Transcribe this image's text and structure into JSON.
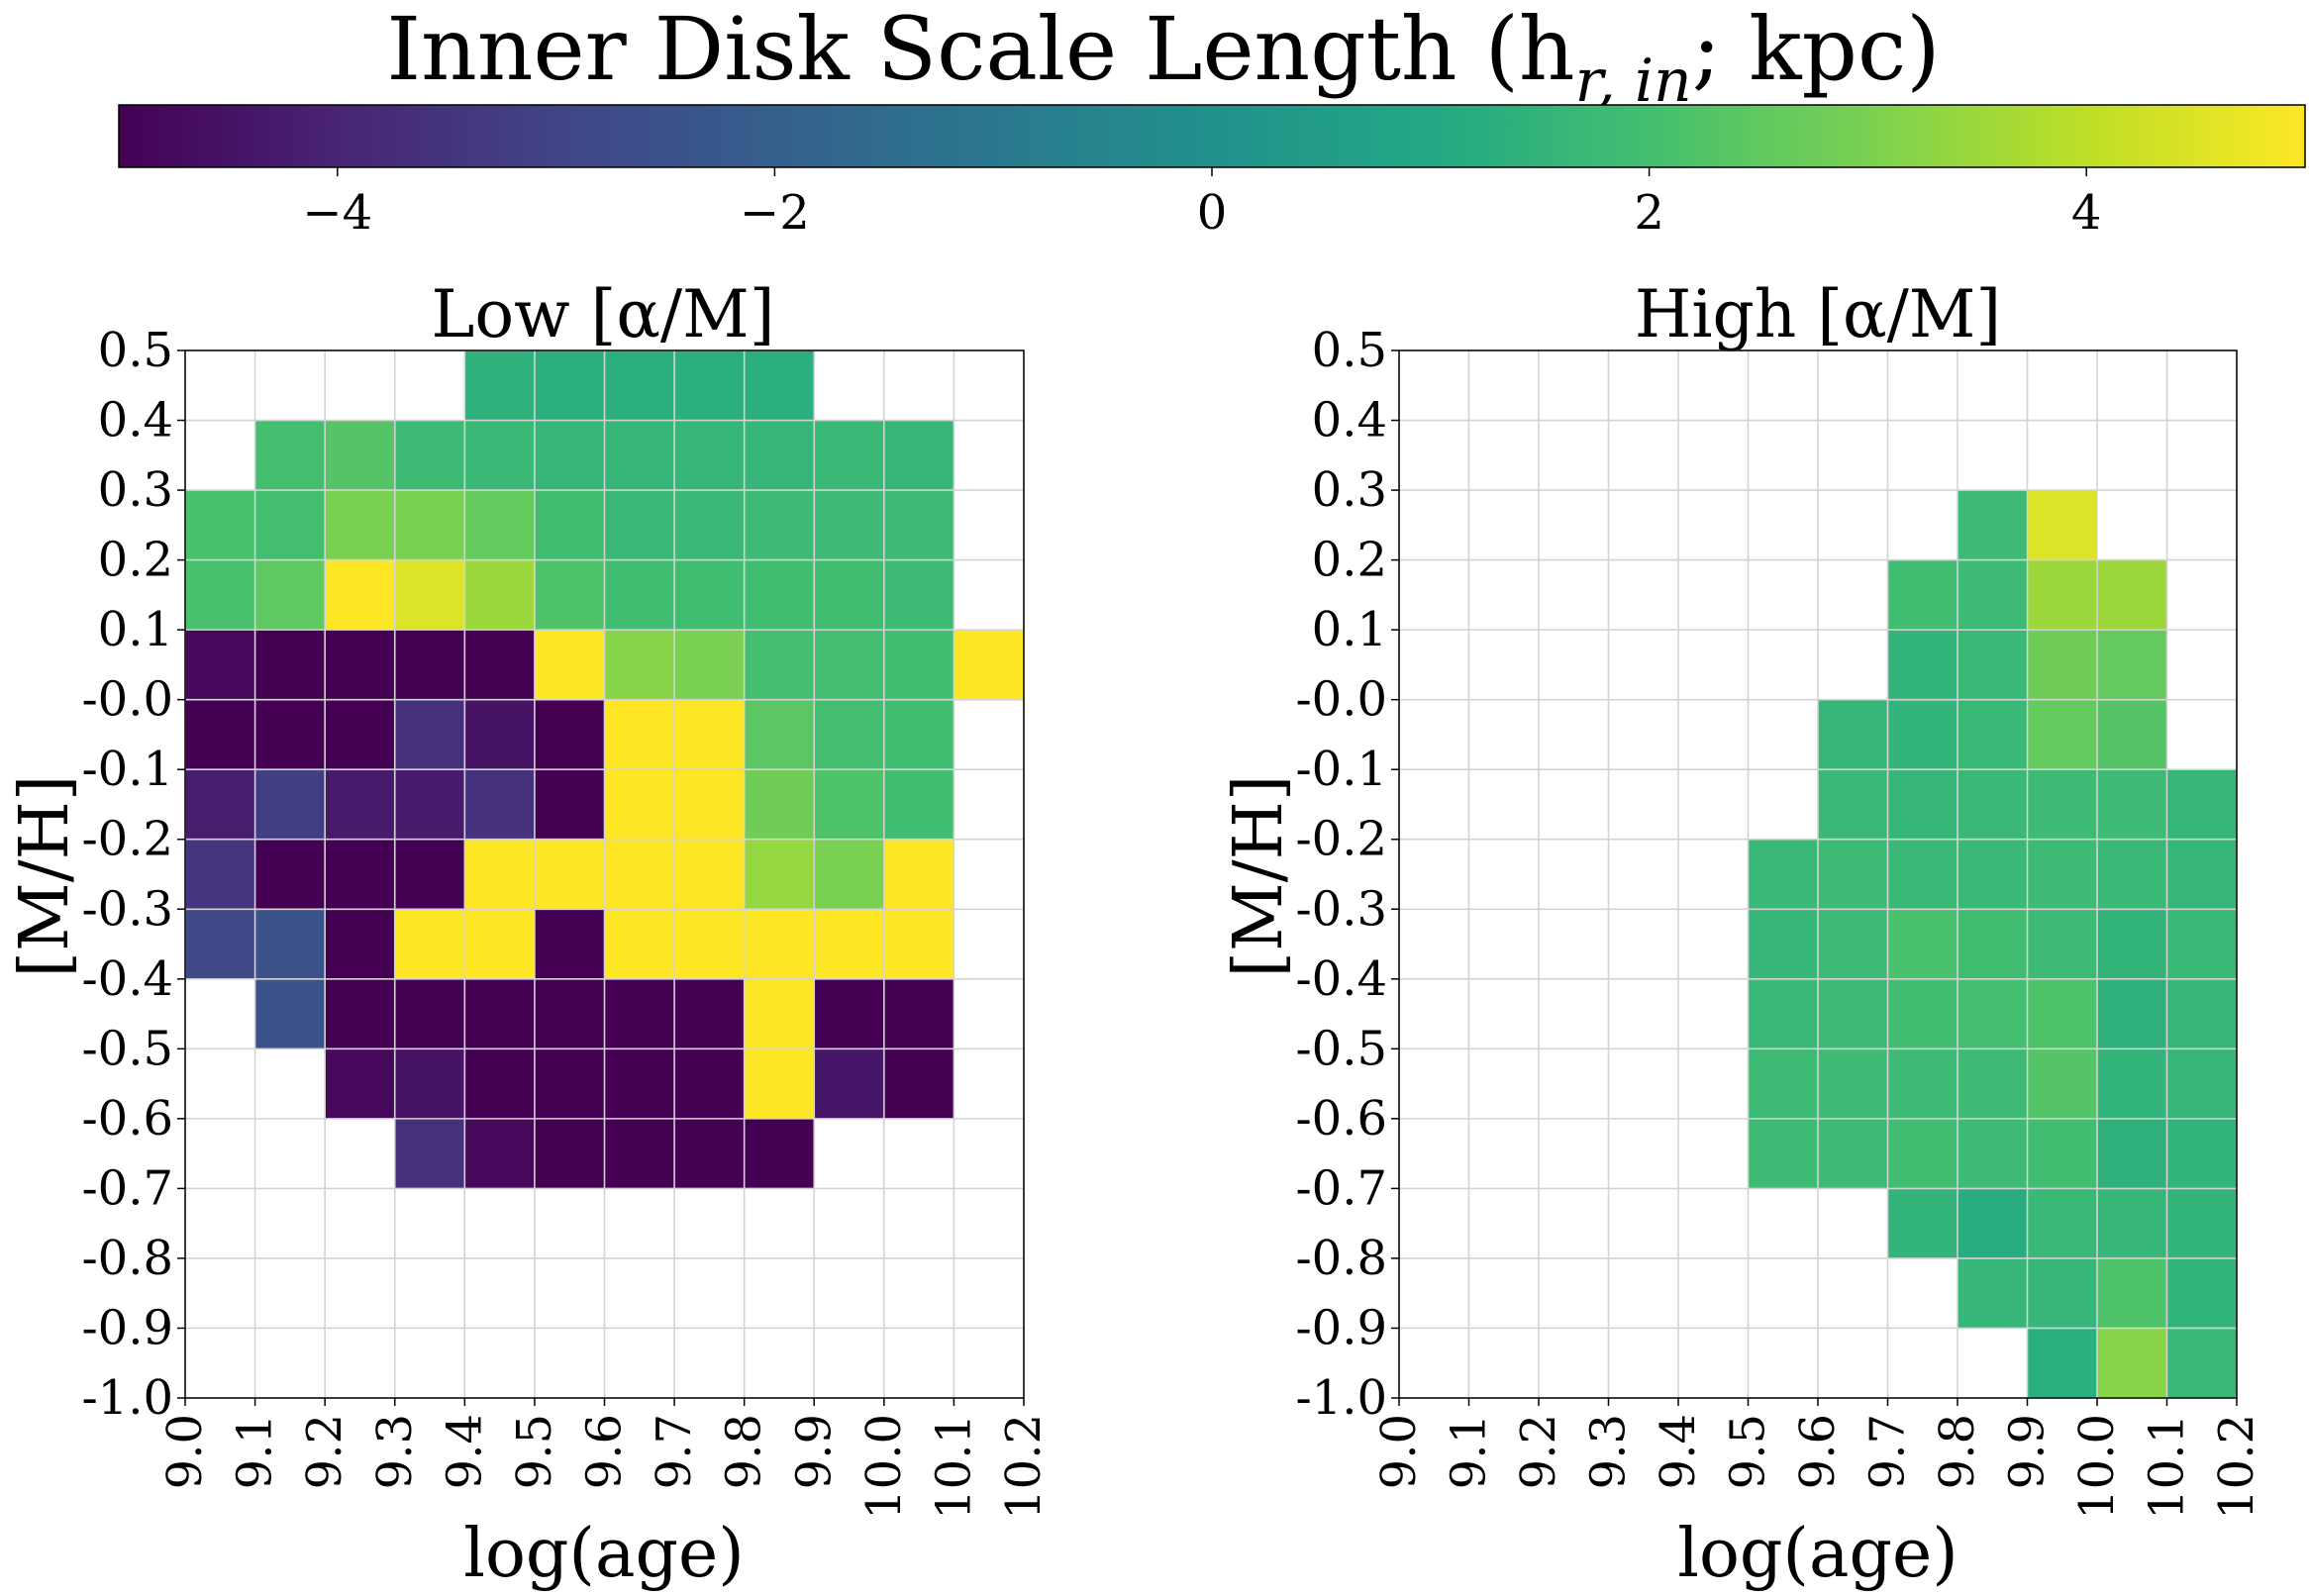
{
  "chart_data": [
    {
      "type": "heatmap",
      "title": "Low [α/M]",
      "xlabel": "log(age)",
      "ylabel": "[M/H]",
      "x_edges": [
        9.0,
        9.1,
        9.2,
        9.3,
        9.4,
        9.5,
        9.6,
        9.7,
        9.8,
        9.9,
        10.0,
        10.1,
        10.2
      ],
      "y_edges": [
        -1.0,
        -0.9,
        -0.8,
        -0.7,
        -0.6,
        -0.5,
        -0.4,
        -0.3,
        -0.2,
        -0.1,
        0.0,
        0.1,
        0.2,
        0.3,
        0.4,
        0.5
      ],
      "xtick_labels": [
        "9.0",
        "9.1",
        "9.2",
        "9.3",
        "9.4",
        "9.5",
        "9.6",
        "9.7",
        "9.8",
        "9.9",
        "10.0",
        "10.1",
        "10.2"
      ],
      "ytick_labels": [
        "-1.0",
        "-0.9",
        "-0.8",
        "-0.7",
        "-0.6",
        "-0.5",
        "-0.4",
        "-0.3",
        "-0.2",
        "-0.1",
        "-0.0",
        "0.1",
        "0.2",
        "0.3",
        "0.4",
        "0.5"
      ],
      "xlim": [
        9.0,
        10.2
      ],
      "ylim": [
        -1.0,
        0.5
      ],
      "grid": true,
      "rows_top_to_bottom": [
        [
          null,
          null,
          null,
          null,
          1.4,
          1.3,
          1.3,
          1.3,
          1.3,
          null,
          null,
          null
        ],
        [
          null,
          2.0,
          2.3,
          1.8,
          1.7,
          1.6,
          1.6,
          1.6,
          1.6,
          1.7,
          1.6,
          null
        ],
        [
          2.1,
          2.0,
          3.0,
          3.0,
          2.6,
          1.9,
          1.7,
          1.7,
          1.8,
          1.8,
          1.8,
          null
        ],
        [
          2.1,
          2.5,
          5.0,
          4.5,
          3.5,
          2.2,
          1.9,
          1.9,
          1.9,
          1.9,
          1.8,
          null
        ],
        [
          -4.8,
          -5.0,
          -5.0,
          -5.0,
          -5.0,
          5.0,
          3.2,
          3.0,
          2.0,
          2.0,
          1.9,
          5.0
        ],
        [
          -5.0,
          -5.0,
          -5.0,
          -3.6,
          -4.5,
          -5.0,
          5.0,
          5.0,
          2.4,
          2.0,
          1.9,
          null
        ],
        [
          -4.2,
          -3.2,
          -4.3,
          -4.3,
          -3.6,
          -5.0,
          5.0,
          5.0,
          2.8,
          2.2,
          1.9,
          null
        ],
        [
          -3.5,
          -5.0,
          -5.0,
          -5.0,
          5.0,
          5.0,
          5.0,
          5.0,
          3.4,
          3.0,
          5.0,
          null
        ],
        [
          -2.8,
          -2.5,
          -5.0,
          5.0,
          5.0,
          -5.0,
          5.0,
          5.0,
          5.0,
          5.0,
          5.0,
          null
        ],
        [
          null,
          -2.5,
          -5.0,
          -5.0,
          -5.0,
          -5.0,
          -5.0,
          -5.0,
          5.0,
          -5.0,
          -5.0,
          null
        ],
        [
          null,
          null,
          -4.8,
          -4.5,
          -5.0,
          -5.0,
          -5.0,
          -5.0,
          5.0,
          -4.4,
          -5.0,
          null
        ],
        [
          null,
          null,
          null,
          -3.6,
          -4.8,
          -5.0,
          -5.0,
          -5.0,
          -5.0,
          null,
          null,
          null
        ],
        [
          null,
          null,
          null,
          null,
          null,
          null,
          null,
          null,
          null,
          null,
          null,
          null
        ],
        [
          null,
          null,
          null,
          null,
          null,
          null,
          null,
          null,
          null,
          null,
          null,
          null
        ],
        [
          null,
          null,
          null,
          null,
          null,
          null,
          null,
          null,
          null,
          null,
          null,
          null
        ]
      ]
    },
    {
      "type": "heatmap",
      "title": "High [α/M]",
      "xlabel": "log(age)",
      "ylabel": "[M/H]",
      "x_edges": [
        9.0,
        9.1,
        9.2,
        9.3,
        9.4,
        9.5,
        9.6,
        9.7,
        9.8,
        9.9,
        10.0,
        10.1,
        10.2
      ],
      "y_edges": [
        -1.0,
        -0.9,
        -0.8,
        -0.7,
        -0.6,
        -0.5,
        -0.4,
        -0.3,
        -0.2,
        -0.1,
        0.0,
        0.1,
        0.2,
        0.3,
        0.4,
        0.5
      ],
      "xtick_labels": [
        "9.0",
        "9.1",
        "9.2",
        "9.3",
        "9.4",
        "9.5",
        "9.6",
        "9.7",
        "9.8",
        "9.9",
        "10.0",
        "10.1",
        "10.2"
      ],
      "ytick_labels": [
        "-1.0",
        "-0.9",
        "-0.8",
        "-0.7",
        "-0.6",
        "-0.5",
        "-0.4",
        "-0.3",
        "-0.2",
        "-0.1",
        "-0.0",
        "0.1",
        "0.2",
        "0.3",
        "0.4",
        "0.5"
      ],
      "xlim": [
        9.0,
        10.2
      ],
      "ylim": [
        -1.0,
        0.5
      ],
      "grid": true,
      "rows_top_to_bottom": [
        [
          null,
          null,
          null,
          null,
          null,
          null,
          null,
          null,
          null,
          null,
          null,
          null
        ],
        [
          null,
          null,
          null,
          null,
          null,
          null,
          null,
          null,
          null,
          null,
          null,
          null
        ],
        [
          null,
          null,
          null,
          null,
          null,
          null,
          null,
          null,
          1.8,
          4.5,
          null,
          null
        ],
        [
          null,
          null,
          null,
          null,
          null,
          null,
          null,
          1.9,
          1.8,
          3.5,
          3.5,
          null
        ],
        [
          null,
          null,
          null,
          null,
          null,
          null,
          null,
          1.5,
          1.7,
          2.8,
          2.6,
          null
        ],
        [
          null,
          null,
          null,
          null,
          null,
          null,
          1.6,
          1.5,
          1.7,
          2.6,
          2.3,
          null
        ],
        [
          null,
          null,
          null,
          null,
          null,
          null,
          1.7,
          1.6,
          1.7,
          1.8,
          1.8,
          1.6
        ],
        [
          null,
          null,
          null,
          null,
          null,
          1.7,
          1.8,
          1.7,
          1.7,
          1.8,
          1.7,
          1.6
        ],
        [
          null,
          null,
          null,
          null,
          null,
          1.6,
          1.8,
          2.1,
          1.9,
          1.8,
          1.5,
          1.7
        ],
        [
          null,
          null,
          null,
          null,
          null,
          1.7,
          1.8,
          1.9,
          2.0,
          2.2,
          1.4,
          1.6
        ],
        [
          null,
          null,
          null,
          null,
          null,
          1.8,
          1.8,
          1.8,
          1.8,
          2.3,
          1.5,
          1.6
        ],
        [
          null,
          null,
          null,
          null,
          null,
          1.8,
          1.8,
          1.9,
          1.8,
          1.9,
          1.4,
          1.5
        ],
        [
          null,
          null,
          null,
          null,
          null,
          null,
          null,
          1.5,
          1.2,
          1.7,
          1.6,
          1.5
        ],
        [
          null,
          null,
          null,
          null,
          null,
          null,
          null,
          null,
          1.6,
          1.6,
          2.2,
          1.5
        ],
        [
          null,
          null,
          null,
          null,
          null,
          null,
          null,
          null,
          null,
          1.3,
          3.2,
          1.7
        ]
      ]
    }
  ],
  "colorbar": {
    "title": "Inner Disk Scale Length (h",
    "title_sub": "r, in",
    "title_tail": "; kpc)",
    "colormap": "viridis",
    "vmin": -5,
    "vmax": 5,
    "ticks": [
      -4,
      -2,
      0,
      2,
      4
    ],
    "tick_labels": [
      "−4",
      "−2",
      "0",
      "2",
      "4"
    ],
    "orientation": "horizontal",
    "location": "top"
  },
  "style": {
    "grid_color": "#d3d3d3",
    "axes_edge_color": "#000000"
  }
}
